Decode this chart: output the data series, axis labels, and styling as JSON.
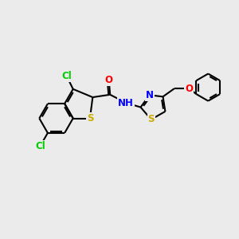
{
  "background_color": "#ebebeb",
  "atom_colors": {
    "C": "#000000",
    "Cl": "#00cc00",
    "N": "#0000ff",
    "O": "#ff0000",
    "S": "#ccaa00",
    "H": "#000000"
  },
  "bond_color": "#000000",
  "bond_width": 1.5,
  "font_size": 8.5,
  "figsize": [
    3.0,
    3.0
  ],
  "dpi": 100
}
